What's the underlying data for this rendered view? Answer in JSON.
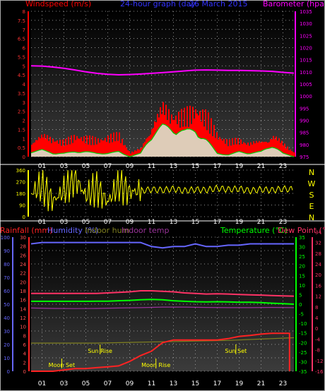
{
  "header": {
    "left_title": "Windspeed (m/s)",
    "center_title": "24-hour graph (day",
    "center_date": "26 March 2015",
    "right_title": "Barometer (hpa)"
  },
  "colors": {
    "wind_gust": "#ff0000",
    "wind_avg": "#00cc00",
    "wind_fill": "#d8f0d8",
    "barometer": "#ff00ff",
    "direction": "#ffff00",
    "humidity": "#6666ff",
    "indoor_hum": "#808020",
    "indoor_temp": "#993399",
    "temperature": "#00ff00",
    "dew_point": "#ff3366",
    "rainfall": "#ff2222",
    "sun_moon_label": "#ffff00"
  },
  "chart_data": [
    {
      "type": "line",
      "title": "24-hour graph (day 26 March 2015)",
      "x_ticks": [
        "01",
        "03",
        "05",
        "07",
        "09",
        "11",
        "13",
        "15",
        "17",
        "19",
        "21",
        "23"
      ],
      "left_axis": {
        "label": "Windspeed (m/s)",
        "ticks": [
          "0",
          "0.5",
          "1",
          "1.5",
          "2",
          "2.5",
          "3",
          "3.5",
          "4",
          "4.5",
          "5",
          "5.5",
          "6",
          "6.5",
          "7",
          "7.5",
          "8"
        ],
        "ylim": [
          0,
          8
        ]
      },
      "right_axis": {
        "label": "Barometer (hpa)",
        "ticks": [
          "975",
          "980",
          "985",
          "990",
          "995",
          "1000",
          "1005",
          "1010",
          "1015",
          "1020",
          "1025",
          "1030",
          "1035"
        ],
        "ylim": [
          975,
          1035
        ]
      },
      "series": [
        {
          "name": "Barometer",
          "hours": [
            0,
            1,
            2,
            3,
            4,
            5,
            6,
            7,
            8,
            9,
            10,
            11,
            12,
            13,
            14,
            15,
            16,
            17,
            18,
            19,
            20,
            21,
            22,
            23,
            24
          ],
          "values": [
            1012.5,
            1012.4,
            1012,
            1011.5,
            1010.8,
            1010,
            1009.4,
            1009,
            1008.8,
            1008.9,
            1009.1,
            1009.4,
            1009.7,
            1010,
            1010.4,
            1010.7,
            1010.8,
            1010.7,
            1010.6,
            1010.6,
            1010.5,
            1010.4,
            1010.2,
            1009.8,
            1009.5
          ]
        },
        {
          "name": "Windspeed",
          "hours": [
            0,
            1,
            2,
            3,
            4,
            5,
            6,
            7,
            8,
            9,
            10,
            11,
            12,
            13,
            14,
            15,
            16,
            17,
            18,
            19,
            20,
            21,
            22,
            23,
            24
          ],
          "gust": [
            1.2,
            1.5,
            1.3,
            1,
            1.4,
            1.2,
            1.1,
            1.3,
            1.5,
            0.3,
            0.6,
            2.5,
            3.5,
            3,
            2.8,
            3.2,
            2.6,
            1.4,
            1,
            1.2,
            1,
            1.1,
            1.6,
            0.9,
            0.3
          ],
          "average": [
            0.3,
            0.4,
            0.2,
            0.2,
            0.3,
            0.3,
            0.2,
            0.2,
            0.3,
            0,
            0.2,
            1.3,
            1.8,
            1.7,
            1.5,
            1.6,
            1,
            0.2,
            0.1,
            0.3,
            0.2,
            0.3,
            0.7,
            0.2,
            0
          ]
        }
      ]
    },
    {
      "type": "scatter",
      "title": "",
      "x_ticks": [
        "01",
        "03",
        "05",
        "07",
        "09",
        "11",
        "13",
        "15",
        "17",
        "19",
        "21",
        "23"
      ],
      "left_axis": {
        "ticks": [
          "0",
          "90",
          "180",
          "270",
          "360"
        ],
        "ylim": [
          0,
          360
        ]
      },
      "right_axis": {
        "ticks": [
          "N",
          "W",
          "S",
          "E",
          "N"
        ]
      },
      "series": [
        {
          "name": "Wind direction",
          "hours": [
            0,
            1,
            2,
            3,
            4,
            5,
            6,
            7,
            8,
            9,
            10,
            11,
            12,
            13,
            14,
            15,
            16,
            17,
            18,
            19,
            20,
            21,
            22,
            23,
            24
          ],
          "values": [
            180,
            240,
            120,
            200,
            300,
            160,
            220,
            110,
            250,
            190,
            200,
            210,
            205,
            215,
            200,
            210,
            205,
            220,
            210,
            215,
            200,
            210,
            205,
            215,
            210
          ]
        }
      ]
    },
    {
      "type": "line",
      "title": "",
      "x_ticks": [
        "01",
        "03",
        "05",
        "07",
        "09",
        "11",
        "13",
        "15",
        "17",
        "19",
        "21",
        "23"
      ],
      "left_axis_1": {
        "label": "Rainfall (mm)",
        "ticks": [
          "0",
          "2",
          "4",
          "6",
          "8",
          "10",
          "12",
          "14",
          "16",
          "18",
          "20",
          "22",
          "24",
          "26",
          "28",
          "30"
        ],
        "ylim": [
          0,
          30
        ]
      },
      "left_axis_2": {
        "label": "Humidity (%)",
        "ticks": [
          "0",
          "10",
          "20",
          "30",
          "40",
          "50",
          "60",
          "70",
          "80",
          "90",
          "100"
        ],
        "ylim": [
          0,
          100
        ]
      },
      "right_axis_1": {
        "label": "Temperature (°C)",
        "ticks": [
          "-35",
          "-30",
          "-25",
          "-20",
          "-15",
          "-10",
          "-5",
          "0",
          "5",
          "10",
          "15",
          "20",
          "25",
          "30",
          "35"
        ],
        "ylim": [
          -35,
          35
        ]
      },
      "right_axis_2": {
        "label": "Dew Point (°C)",
        "ticks": [
          "-16",
          "-12",
          "-8",
          "-4",
          "0",
          "4",
          "8",
          "12",
          "16",
          "20",
          "24",
          "28",
          "32",
          "34"
        ],
        "ylim": [
          -16,
          34
        ]
      },
      "legend": [
        "Rainfall (mm)",
        "Humidity (%)",
        "Indoor hum",
        "Indoor temp",
        "Temperature (°C)",
        "Dew Point (°C)"
      ],
      "annotations": [
        {
          "label": "Sun Rise",
          "hour": 6.3
        },
        {
          "label": "Moon Set",
          "hour": 2.8
        },
        {
          "label": "Moon Rise",
          "hour": 11.4
        },
        {
          "label": "Sun Set",
          "hour": 18.7
        }
      ],
      "series": [
        {
          "name": "Humidity (%)",
          "hours": [
            0,
            1,
            2,
            3,
            4,
            5,
            6,
            7,
            8,
            9,
            10,
            11,
            12,
            13,
            14,
            15,
            16,
            17,
            18,
            19,
            20,
            21,
            22,
            23,
            24
          ],
          "values": [
            95,
            96,
            96,
            96,
            96,
            96,
            96,
            96,
            96,
            96,
            96,
            93,
            92,
            93,
            93,
            95,
            93,
            93,
            94,
            94,
            95,
            95,
            95,
            95,
            95
          ]
        },
        {
          "name": "Temperature (°C)",
          "hours": [
            0,
            1,
            2,
            3,
            4,
            5,
            6,
            7,
            8,
            9,
            10,
            11,
            12,
            13,
            14,
            15,
            16,
            17,
            18,
            19,
            20,
            21,
            22,
            23,
            24
          ],
          "values": [
            1.5,
            1.5,
            1.5,
            1.5,
            1.5,
            1.5,
            1.6,
            1.6,
            1.8,
            2,
            2.3,
            2.5,
            2.3,
            1.8,
            1.5,
            1.3,
            1.2,
            1.3,
            1.2,
            1,
            1,
            0.8,
            0.5,
            0.3,
            0
          ]
        },
        {
          "name": "Dew Point (°C)",
          "hours": [
            0,
            1,
            2,
            3,
            4,
            5,
            6,
            7,
            8,
            9,
            10,
            11,
            12,
            13,
            14,
            15,
            16,
            17,
            18,
            19,
            20,
            21,
            22,
            23,
            24
          ],
          "values": [
            13,
            13,
            13,
            13,
            13,
            13,
            13,
            13.2,
            13.4,
            13.6,
            14,
            14,
            13.8,
            13.6,
            13.2,
            13,
            12.8,
            12.9,
            12.8,
            12.6,
            12.5,
            12.4,
            12.2,
            12.1,
            12
          ]
        },
        {
          "name": "Indoor temp",
          "hours": [
            0,
            2,
            4,
            6,
            8,
            10,
            12,
            14,
            16,
            18,
            20,
            22,
            24
          ],
          "values": [
            -2,
            -2.2,
            -2.3,
            -2.2,
            -2,
            -1.8,
            -1.5,
            -1.5,
            -1.7,
            -1.8,
            -1.8,
            -1.7,
            -1.8
          ]
        },
        {
          "name": "Indoor hum",
          "hours": [
            0,
            6,
            9,
            12,
            15,
            18,
            21,
            24
          ],
          "values": [
            21,
            21,
            21.5,
            22,
            22.5,
            23,
            24,
            25
          ]
        },
        {
          "name": "Rainfall (mm)",
          "hours": [
            0,
            1,
            2,
            3,
            4,
            5,
            6,
            7,
            8,
            9,
            10,
            11,
            12,
            13,
            14,
            15,
            16,
            17,
            18,
            19,
            20,
            21,
            22,
            23,
            23.6,
            23.6
          ],
          "values": [
            0,
            0,
            0,
            0.3,
            0.6,
            0.6,
            0.8,
            1,
            1.2,
            2.2,
            3.5,
            4.5,
            6.4,
            7,
            7,
            7,
            7,
            7,
            7.3,
            7.8,
            8,
            8.3,
            8.5,
            8.5,
            8.5,
            0
          ]
        }
      ]
    }
  ]
}
